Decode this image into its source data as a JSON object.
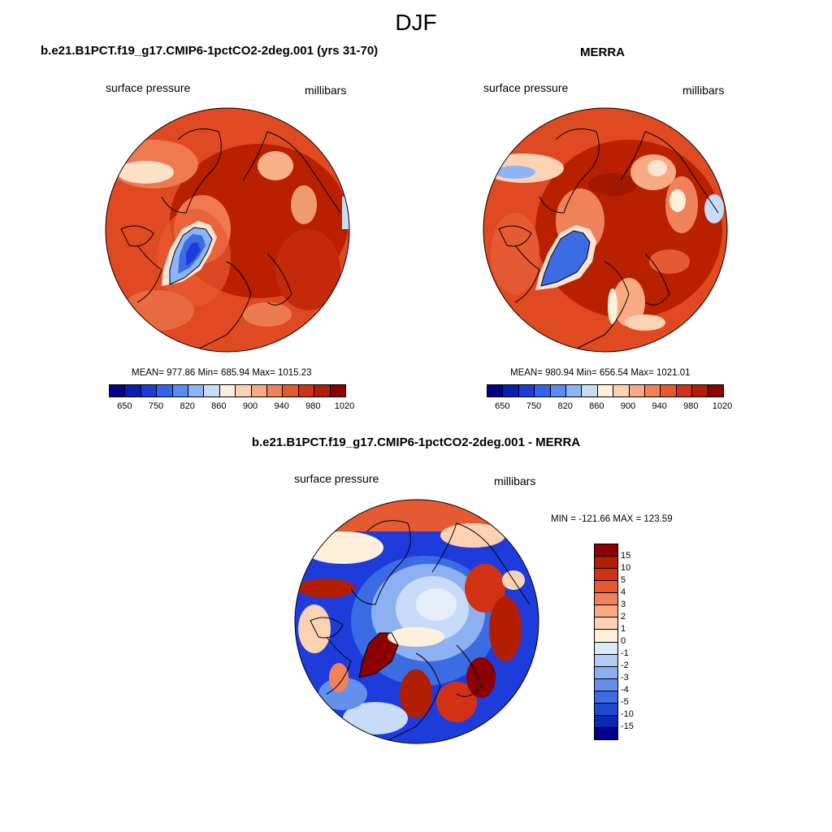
{
  "header": {
    "season": "DJF"
  },
  "panels": {
    "model": {
      "title": "b.e21.B1PCT.f19_g17.CMIP6-1pctCO2-2deg.001 (yrs 31-70)",
      "left_label": "surface pressure",
      "right_label": "millibars",
      "stats": "MEAN= 977.86  Min= 685.94  Max= 1015.23",
      "stat_values": {
        "mean": 977.86,
        "min": 685.94,
        "max": 1015.23
      }
    },
    "obs": {
      "title": "MERRA",
      "left_label": "surface pressure",
      "right_label": "millibars",
      "stats": "MEAN= 980.94  Min= 656.54  Max= 1021.01",
      "stat_values": {
        "mean": 980.94,
        "min": 656.54,
        "max": 1021.01
      }
    },
    "diff": {
      "title": "b.e21.B1PCT.f19_g17.CMIP6-1pctCO2-2deg.001 - MERRA",
      "left_label": "surface pressure",
      "right_label": "millibars",
      "stats": "MIN = -121.66 MAX = 123.59",
      "stat_values": {
        "min": -121.66,
        "max": 123.59
      }
    }
  },
  "colorbars": {
    "abs_colors": [
      "#00008c",
      "#0a1eb4",
      "#1e3cdc",
      "#3264f0",
      "#5a8cf5",
      "#8cb4f8",
      "#c8dcf8",
      "#fff0dc",
      "#fcd2b4",
      "#f8aa82",
      "#f0825a",
      "#e65a32",
      "#d23214",
      "#b41e00",
      "#8c0000"
    ],
    "abs_ticks": [
      "650",
      "750",
      "820",
      "860",
      "900",
      "940",
      "980",
      "1020"
    ],
    "diff_colors": [
      "#8c0000",
      "#b41e00",
      "#d23214",
      "#e65a32",
      "#f0825a",
      "#f8aa82",
      "#fcd2b4",
      "#fff0dc",
      "#dce8f8",
      "#b4ccf4",
      "#8cb0f0",
      "#6490ec",
      "#3c6ce4",
      "#1e48d2",
      "#0a28b4",
      "#00008c"
    ],
    "diff_ticks": [
      "15",
      "10",
      "5",
      "4",
      "3",
      "2",
      "1",
      "0",
      "-1",
      "-2",
      "-3",
      "-4",
      "-5",
      "-10",
      "-15"
    ]
  }
}
